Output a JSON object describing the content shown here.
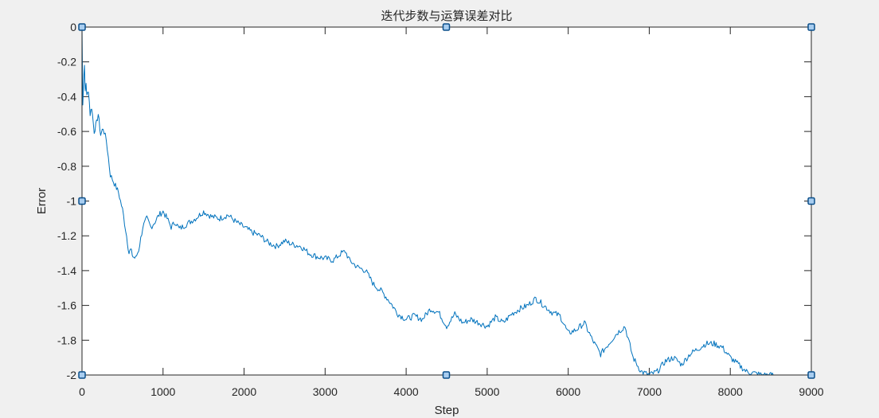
{
  "chart_data": {
    "type": "line",
    "title": "迭代步数与运算误差对比",
    "xlabel": "Step",
    "ylabel": "Error",
    "xlim": [
      0,
      9000
    ],
    "ylim": [
      -2,
      0
    ],
    "xticks": [
      0,
      1000,
      2000,
      3000,
      4000,
      5000,
      6000,
      7000,
      8000,
      9000
    ],
    "xtick_labels": [
      "0",
      "1000",
      "2000",
      "3000",
      "4000",
      "5000",
      "6000",
      "7000",
      "8000",
      "9000"
    ],
    "yticks": [
      0,
      -0.2,
      -0.4,
      -0.6,
      -0.8,
      -1,
      -1.2,
      -1.4,
      -1.6,
      -1.8,
      -2
    ],
    "ytick_labels": [
      "0",
      "-0.2",
      "-0.4",
      "-0.6",
      "-0.8",
      "-1",
      "-1.2",
      "-1.4",
      "-1.6",
      "-1.8",
      "-2"
    ],
    "grid": false,
    "line_color": "#0072bd",
    "series": [
      {
        "x": [
          0,
          10,
          20,
          30,
          40,
          50,
          60,
          80,
          100,
          120,
          150,
          180,
          200,
          230,
          260,
          300,
          350,
          400,
          450,
          500,
          550,
          580,
          600,
          630,
          660,
          700,
          750,
          800,
          850,
          900,
          950,
          1000,
          1050,
          1100,
          1150,
          1200,
          1300,
          1400,
          1500,
          1600,
          1700,
          1800,
          1900,
          2000,
          2100,
          2200,
          2300,
          2400,
          2500,
          2600,
          2700,
          2800,
          2900,
          3000,
          3100,
          3200,
          3250,
          3300,
          3400,
          3500,
          3600,
          3700,
          3800,
          3900,
          4000,
          4100,
          4200,
          4300,
          4400,
          4500,
          4600,
          4700,
          4800,
          4900,
          5000,
          5100,
          5200,
          5300,
          5400,
          5500,
          5600,
          5700,
          5800,
          5900,
          6000,
          6100,
          6200,
          6300,
          6400,
          6500,
          6600,
          6700,
          6800,
          6900,
          7000,
          7100,
          7200,
          7300,
          7400,
          7500,
          7600,
          7700,
          7800,
          7900,
          8000,
          8100,
          8200,
          8300,
          8400,
          8500,
          8530
        ],
        "y": [
          0,
          -0.45,
          -0.3,
          -0.22,
          -0.38,
          -0.32,
          -0.4,
          -0.36,
          -0.5,
          -0.46,
          -0.6,
          -0.55,
          -0.5,
          -0.62,
          -0.58,
          -0.65,
          -0.85,
          -0.9,
          -0.95,
          -1.05,
          -1.2,
          -1.3,
          -1.28,
          -1.32,
          -1.33,
          -1.28,
          -1.15,
          -1.1,
          -1.15,
          -1.12,
          -1.08,
          -1.06,
          -1.1,
          -1.15,
          -1.12,
          -1.16,
          -1.13,
          -1.1,
          -1.06,
          -1.09,
          -1.1,
          -1.08,
          -1.12,
          -1.15,
          -1.18,
          -1.2,
          -1.24,
          -1.26,
          -1.23,
          -1.25,
          -1.26,
          -1.3,
          -1.32,
          -1.33,
          -1.34,
          -1.3,
          -1.29,
          -1.34,
          -1.38,
          -1.4,
          -1.48,
          -1.52,
          -1.58,
          -1.65,
          -1.68,
          -1.66,
          -1.68,
          -1.62,
          -1.64,
          -1.72,
          -1.65,
          -1.7,
          -1.68,
          -1.7,
          -1.72,
          -1.67,
          -1.7,
          -1.65,
          -1.62,
          -1.6,
          -1.56,
          -1.6,
          -1.64,
          -1.66,
          -1.76,
          -1.74,
          -1.7,
          -1.8,
          -1.88,
          -1.82,
          -1.76,
          -1.72,
          -1.9,
          -1.98,
          -2.0,
          -1.98,
          -1.92,
          -1.9,
          -1.94,
          -1.88,
          -1.85,
          -1.82,
          -1.82,
          -1.84,
          -1.9,
          -1.94,
          -1.98,
          -1.99,
          -2.0,
          -2.0,
          -2.0
        ]
      }
    ]
  }
}
